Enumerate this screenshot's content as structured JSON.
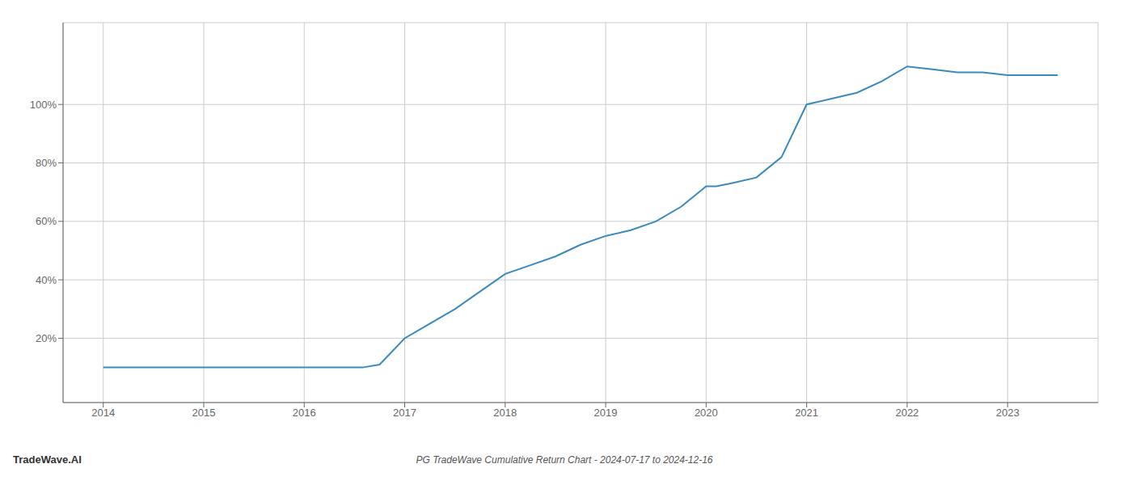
{
  "chart_data": {
    "type": "line",
    "title": "PG TradeWave Cumulative Return Chart - 2024-07-17 to 2024-12-16",
    "annotations": [
      {
        "text": "TradeWave.AI"
      }
    ],
    "color": "#3a8abf",
    "grid": true,
    "x": [
      2014.0,
      2014.25,
      2014.5,
      2014.75,
      2015.0,
      2015.25,
      2015.5,
      2015.75,
      2016.0,
      2016.25,
      2016.5,
      2016.58,
      2016.75,
      2017.0,
      2017.25,
      2017.5,
      2017.75,
      2018.0,
      2018.25,
      2018.5,
      2018.75,
      2019.0,
      2019.25,
      2019.5,
      2019.75,
      2020.0,
      2020.1,
      2020.25,
      2020.5,
      2020.75,
      2021.0,
      2021.25,
      2021.5,
      2021.75,
      2022.0,
      2022.25,
      2022.5,
      2022.75,
      2023.0,
      2023.5
    ],
    "values": [
      10,
      10,
      10,
      10,
      10,
      10,
      10,
      10,
      10,
      10,
      10,
      10,
      11,
      20,
      25,
      30,
      36,
      42,
      45,
      48,
      52,
      55,
      57,
      60,
      65,
      72,
      72,
      73,
      75,
      82,
      100,
      102,
      104,
      108,
      113,
      112,
      111,
      111,
      110,
      110
    ],
    "xlim": [
      2013.6,
      2023.9
    ],
    "ylim": [
      -2,
      128
    ],
    "xticks": [
      2014,
      2015,
      2016,
      2017,
      2018,
      2019,
      2020,
      2021,
      2022,
      2023
    ],
    "yticks": [
      {
        "value": 20,
        "label": "20%"
      },
      {
        "value": 40,
        "label": "40%"
      },
      {
        "value": 60,
        "label": "60%"
      },
      {
        "value": 80,
        "label": "80%"
      },
      {
        "value": 100,
        "label": "100%"
      }
    ]
  }
}
